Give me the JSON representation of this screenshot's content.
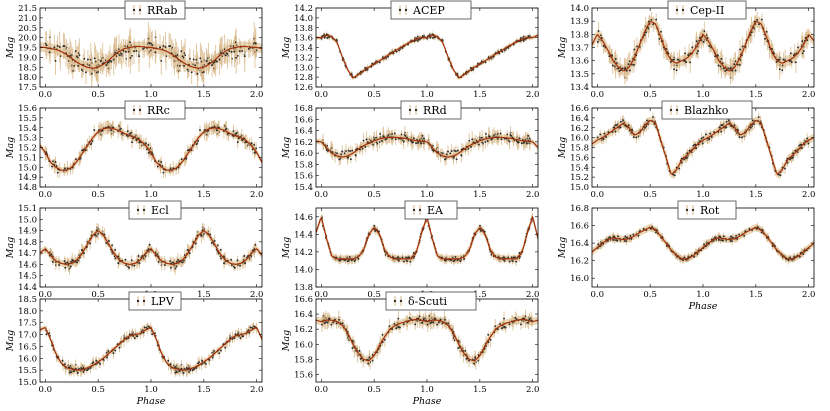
{
  "colors": {
    "band": "#e3c9a0",
    "curve": "#a0300a",
    "point": "#2b2b2b",
    "errorbar": "#d8b98a"
  },
  "chart_data": [
    {
      "type": "scatter",
      "name": "RRab",
      "legend": "RRab",
      "xlabel": "",
      "ylabel": "Mag",
      "xlim": [
        -0.05,
        2.05
      ],
      "ylim": [
        21.5,
        17.5
      ],
      "yticks": [
        17.5,
        18.0,
        18.5,
        19.0,
        19.5,
        20.0,
        20.5,
        21.0,
        21.5
      ],
      "yticklabels": [
        "17.5",
        "18.0",
        "18.5",
        "19.0",
        "19.5",
        "20.0",
        "20.5",
        "21.0",
        "21.5"
      ],
      "xticks": [
        0.0,
        0.5,
        1.0,
        1.5,
        2.0
      ],
      "xticklabels": [
        "0.0",
        "0.5",
        "1.0",
        "1.5",
        "2.0"
      ],
      "curve": {
        "x": [
          0.0,
          0.05,
          0.1,
          0.15,
          0.2,
          0.25,
          0.3,
          0.35,
          0.4,
          0.45,
          0.5,
          0.55,
          0.6,
          0.65,
          0.7,
          0.75,
          0.8,
          0.85,
          0.9,
          0.95,
          1.0
        ],
        "y": [
          19.5,
          19.45,
          19.4,
          19.3,
          19.15,
          18.95,
          18.75,
          18.6,
          18.5,
          18.45,
          18.5,
          18.65,
          18.85,
          19.1,
          19.3,
          19.45,
          19.5,
          19.55,
          19.55,
          19.52,
          19.5
        ]
      },
      "band": 0.25,
      "scatter": 1.0
    },
    {
      "type": "scatter",
      "name": "ACEP",
      "legend": "ACEP",
      "xlabel": "",
      "ylabel": "Mag",
      "xlim": [
        -0.05,
        2.05
      ],
      "ylim": [
        14.2,
        12.6
      ],
      "yticks": [
        12.6,
        12.8,
        13.0,
        13.2,
        13.4,
        13.6,
        13.8,
        14.0,
        14.2
      ],
      "yticklabels": [
        "12.6",
        "12.8",
        "13.0",
        "13.2",
        "13.4",
        "13.6",
        "13.8",
        "14.0",
        "14.2"
      ],
      "xticks": [
        0.0,
        0.5,
        1.0,
        1.5,
        2.0
      ],
      "xticklabels": [
        "0.0",
        "0.5",
        "1.0",
        "1.5",
        "2.0"
      ],
      "curve": {
        "x": [
          0.0,
          0.05,
          0.1,
          0.15,
          0.2,
          0.25,
          0.3,
          0.35,
          0.4,
          0.45,
          0.5,
          0.55,
          0.6,
          0.65,
          0.7,
          0.75,
          0.8,
          0.85,
          0.9,
          0.95,
          1.0
        ],
        "y": [
          13.6,
          13.65,
          13.62,
          13.5,
          13.2,
          12.95,
          12.78,
          12.85,
          12.93,
          13.0,
          13.07,
          13.13,
          13.2,
          13.27,
          13.33,
          13.4,
          13.46,
          13.52,
          13.57,
          13.6,
          13.6
        ]
      },
      "band": 0.04,
      "scatter": 0.08
    },
    {
      "type": "scatter",
      "name": "Cep-II",
      "legend": "Cep-II",
      "xlabel": "",
      "ylabel": "Mag",
      "xlim": [
        -0.05,
        2.05
      ],
      "ylim": [
        14.0,
        13.4
      ],
      "yticks": [
        13.4,
        13.5,
        13.6,
        13.7,
        13.8,
        13.9,
        14.0
      ],
      "yticklabels": [
        "13.4",
        "13.5",
        "13.6",
        "13.7",
        "13.8",
        "13.9",
        "14.0"
      ],
      "xticks": [
        0.0,
        0.5,
        1.0,
        1.5,
        2.0
      ],
      "xticklabels": [
        "0.0",
        "0.5",
        "1.0",
        "1.5",
        "2.0"
      ],
      "curve": {
        "x": [
          0.0,
          0.05,
          0.1,
          0.15,
          0.2,
          0.25,
          0.3,
          0.35,
          0.4,
          0.45,
          0.5,
          0.55,
          0.6,
          0.65,
          0.7,
          0.75,
          0.8,
          0.85,
          0.9,
          0.95,
          1.0
        ],
        "y": [
          13.8,
          13.75,
          13.68,
          13.6,
          13.55,
          13.52,
          13.55,
          13.62,
          13.72,
          13.82,
          13.9,
          13.88,
          13.78,
          13.67,
          13.6,
          13.58,
          13.6,
          13.62,
          13.66,
          13.72,
          13.8
        ]
      },
      "band": 0.04,
      "scatter": 0.1
    },
    {
      "type": "scatter",
      "name": "RRc",
      "legend": "RRc",
      "xlabel": "",
      "ylabel": "Mag",
      "xlim": [
        -0.05,
        2.05
      ],
      "ylim": [
        15.6,
        14.8
      ],
      "yticks": [
        14.8,
        14.9,
        15.0,
        15.1,
        15.2,
        15.3,
        15.4,
        15.5,
        15.6
      ],
      "yticklabels": [
        "14.8",
        "14.9",
        "15.0",
        "15.1",
        "15.2",
        "15.3",
        "15.4",
        "15.5",
        "15.6"
      ],
      "xticks": [
        0.0,
        0.5,
        1.0,
        1.5,
        2.0
      ],
      "xticklabels": [
        "0.0",
        "0.5",
        "1.0",
        "1.5",
        "2.0"
      ],
      "curve": {
        "x": [
          0.0,
          0.05,
          0.1,
          0.15,
          0.2,
          0.25,
          0.3,
          0.35,
          0.4,
          0.45,
          0.5,
          0.55,
          0.6,
          0.65,
          0.7,
          0.75,
          0.8,
          0.85,
          0.9,
          0.95,
          1.0
        ],
        "y": [
          15.15,
          15.05,
          15.0,
          14.97,
          14.97,
          15.0,
          15.06,
          15.14,
          15.22,
          15.3,
          15.36,
          15.39,
          15.4,
          15.39,
          15.37,
          15.34,
          15.32,
          15.3,
          15.27,
          15.22,
          15.15
        ]
      },
      "band": 0.03,
      "scatter": 0.09
    },
    {
      "type": "scatter",
      "name": "RRd",
      "legend": "RRd",
      "xlabel": "",
      "ylabel": "Mag",
      "xlim": [
        -0.05,
        2.05
      ],
      "ylim": [
        16.8,
        15.4
      ],
      "yticks": [
        15.4,
        15.6,
        15.8,
        16.0,
        16.2,
        16.4,
        16.6,
        16.8
      ],
      "yticklabels": [
        "15.4",
        "15.6",
        "15.8",
        "16.0",
        "16.2",
        "16.4",
        "16.6",
        "16.8"
      ],
      "xticks": [
        0.0,
        0.5,
        1.0,
        1.5,
        2.0
      ],
      "xticklabels": [
        "0.0",
        "0.5",
        "1.0",
        "1.5",
        "2.0"
      ],
      "curve": {
        "x": [
          0.0,
          0.05,
          0.1,
          0.15,
          0.2,
          0.25,
          0.3,
          0.35,
          0.4,
          0.45,
          0.5,
          0.55,
          0.6,
          0.65,
          0.7,
          0.75,
          0.8,
          0.85,
          0.9,
          0.95,
          1.0
        ],
        "y": [
          16.2,
          16.1,
          16.0,
          15.95,
          15.93,
          15.95,
          16.0,
          16.07,
          16.13,
          16.18,
          16.22,
          16.25,
          16.27,
          16.28,
          16.28,
          16.27,
          16.26,
          16.24,
          16.22,
          16.21,
          16.2
        ]
      },
      "band": 0.05,
      "scatter": 0.17
    },
    {
      "type": "scatter",
      "name": "Blazhko",
      "legend": "Blazhko",
      "xlabel": "",
      "ylabel": "Mag",
      "xlim": [
        -0.05,
        2.05
      ],
      "ylim": [
        16.6,
        15.0
      ],
      "yticks": [
        15.0,
        15.2,
        15.4,
        15.6,
        15.8,
        16.0,
        16.2,
        16.4,
        16.6
      ],
      "yticklabels": [
        "15.0",
        "15.2",
        "15.4",
        "15.6",
        "15.8",
        "16.0",
        "16.2",
        "16.4",
        "16.6"
      ],
      "xticks": [
        0.0,
        0.5,
        1.0,
        1.5,
        2.0
      ],
      "xticklabels": [
        "0.0",
        "0.5",
        "1.0",
        "1.5",
        "2.0"
      ],
      "curve": {
        "x": [
          0.0,
          0.05,
          0.1,
          0.15,
          0.2,
          0.25,
          0.3,
          0.35,
          0.4,
          0.45,
          0.5,
          0.55,
          0.6,
          0.65,
          0.7,
          0.75,
          0.8,
          0.85,
          0.9,
          0.95,
          1.0
        ],
        "y": [
          15.95,
          16.0,
          16.07,
          16.15,
          16.22,
          16.3,
          16.2,
          16.05,
          16.1,
          16.25,
          16.35,
          16.3,
          15.95,
          15.6,
          15.25,
          15.35,
          15.55,
          15.65,
          15.75,
          15.87,
          15.95
        ]
      },
      "band": 0.08,
      "scatter": 0.14
    },
    {
      "type": "scatter",
      "name": "Ecl",
      "legend": "Ecl",
      "xlabel": "",
      "ylabel": "Mag",
      "xlim": [
        -0.05,
        2.05
      ],
      "ylim": [
        15.1,
        14.4
      ],
      "yticks": [
        14.4,
        14.5,
        14.6,
        14.7,
        14.8,
        14.9,
        15.0,
        15.1
      ],
      "yticklabels": [
        "14.4",
        "14.5",
        "14.6",
        "14.7",
        "14.8",
        "14.9",
        "15.0",
        "15.1"
      ],
      "xticks": [
        0.0,
        0.5,
        1.0,
        1.5,
        2.0
      ],
      "xticklabels": [
        "0.0",
        "0.5",
        "1.0",
        "1.5",
        "2.0"
      ],
      "curve": {
        "x": [
          0.0,
          0.05,
          0.1,
          0.15,
          0.2,
          0.25,
          0.3,
          0.35,
          0.4,
          0.45,
          0.5,
          0.55,
          0.6,
          0.65,
          0.7,
          0.75,
          0.8,
          0.85,
          0.9,
          0.95,
          1.0
        ],
        "y": [
          14.74,
          14.68,
          14.63,
          14.61,
          14.6,
          14.61,
          14.64,
          14.7,
          14.78,
          14.86,
          14.9,
          14.86,
          14.78,
          14.7,
          14.64,
          14.61,
          14.6,
          14.61,
          14.64,
          14.7,
          14.74
        ]
      },
      "band": 0.03,
      "scatter": 0.07
    },
    {
      "type": "scatter",
      "name": "EA",
      "legend": "EA",
      "xlabel": "",
      "ylabel": "Mag",
      "xlim": [
        -0.05,
        2.05
      ],
      "ylim": [
        14.7,
        13.8
      ],
      "yticks": [
        13.8,
        14.0,
        14.2,
        14.4,
        14.6
      ],
      "yticklabels": [
        "13.8",
        "14.0",
        "14.2",
        "14.4",
        "14.6"
      ],
      "xticks": [
        0.0,
        0.5,
        1.0,
        1.5,
        2.0
      ],
      "xticklabels": [
        "0.0",
        "0.5",
        "1.0",
        "1.5",
        "2.0"
      ],
      "curve": {
        "x": [
          0.0,
          0.05,
          0.1,
          0.15,
          0.2,
          0.25,
          0.3,
          0.35,
          0.4,
          0.45,
          0.5,
          0.55,
          0.6,
          0.65,
          0.7,
          0.75,
          0.8,
          0.85,
          0.9,
          0.95,
          1.0
        ],
        "y": [
          14.6,
          14.35,
          14.15,
          14.12,
          14.12,
          14.12,
          14.12,
          14.14,
          14.22,
          14.4,
          14.48,
          14.4,
          14.22,
          14.14,
          14.12,
          14.12,
          14.12,
          14.12,
          14.2,
          14.42,
          14.6
        ]
      },
      "band": 0.04,
      "scatter": 0.06
    },
    {
      "type": "scatter",
      "name": "Rot",
      "legend": "Rot",
      "xlabel": "Phase",
      "ylabel": "Mag",
      "xlim": [
        -0.05,
        2.05
      ],
      "ylim": [
        16.8,
        15.9
      ],
      "yticks": [
        16.0,
        16.2,
        16.4,
        16.6,
        16.8
      ],
      "yticklabels": [
        "16.0",
        "16.2",
        "16.4",
        "16.6",
        "16.8"
      ],
      "xticks": [
        0.0,
        0.5,
        1.0,
        1.5,
        2.0
      ],
      "xticklabels": [
        "0.0",
        "0.5",
        "1.0",
        "1.5",
        "2.0"
      ],
      "curve": {
        "x": [
          0.0,
          0.05,
          0.1,
          0.15,
          0.2,
          0.25,
          0.3,
          0.35,
          0.4,
          0.45,
          0.5,
          0.55,
          0.6,
          0.65,
          0.7,
          0.75,
          0.8,
          0.85,
          0.9,
          0.95,
          1.0
        ],
        "y": [
          16.35,
          16.4,
          16.44,
          16.46,
          16.45,
          16.44,
          16.45,
          16.48,
          16.52,
          16.55,
          16.58,
          16.55,
          16.48,
          16.4,
          16.32,
          16.26,
          16.22,
          16.22,
          16.25,
          16.3,
          16.35
        ]
      },
      "band": 0.04,
      "scatter": 0.06
    },
    {
      "type": "scatter",
      "name": "LPV",
      "legend": "LPV",
      "xlabel": "Phase",
      "ylabel": "Mag",
      "xlim": [
        -0.05,
        2.05
      ],
      "ylim": [
        18.5,
        15.0
      ],
      "yticks": [
        15.0,
        15.5,
        16.0,
        16.5,
        17.0,
        17.5,
        18.0,
        18.5
      ],
      "yticklabels": [
        "15.0",
        "15.5",
        "16.0",
        "16.5",
        "17.0",
        "17.5",
        "18.0",
        "18.5"
      ],
      "xticks": [
        0.0,
        0.5,
        1.0,
        1.5,
        2.0
      ],
      "xticklabels": [
        "0.0",
        "0.5",
        "1.0",
        "1.5",
        "2.0"
      ],
      "curve": {
        "x": [
          0.0,
          0.05,
          0.1,
          0.15,
          0.2,
          0.25,
          0.3,
          0.35,
          0.4,
          0.45,
          0.5,
          0.55,
          0.6,
          0.65,
          0.7,
          0.75,
          0.8,
          0.85,
          0.9,
          0.95,
          1.0
        ],
        "y": [
          17.3,
          16.8,
          16.2,
          15.8,
          15.6,
          15.55,
          15.5,
          15.52,
          15.6,
          15.7,
          15.85,
          16.0,
          16.2,
          16.4,
          16.6,
          16.8,
          16.95,
          17.0,
          17.05,
          17.2,
          17.3
        ]
      },
      "band": 0.1,
      "scatter": 0.3
    },
    {
      "type": "scatter",
      "name": "δ-Scuti",
      "legend": "δ-Scuti",
      "xlabel": "Phase",
      "ylabel": "Mag",
      "xlim": [
        -0.05,
        2.05
      ],
      "ylim": [
        16.6,
        15.5
      ],
      "yticks": [
        15.6,
        15.8,
        16.0,
        16.2,
        16.4,
        16.6
      ],
      "yticklabels": [
        "15.6",
        "15.8",
        "16.0",
        "16.2",
        "16.4",
        "16.6"
      ],
      "xticks": [
        0.0,
        0.5,
        1.0,
        1.5,
        2.0
      ],
      "xticklabels": [
        "0.0",
        "0.5",
        "1.0",
        "1.5",
        "2.0"
      ],
      "curve": {
        "x": [
          0.0,
          0.05,
          0.1,
          0.15,
          0.2,
          0.25,
          0.3,
          0.35,
          0.4,
          0.45,
          0.5,
          0.55,
          0.6,
          0.65,
          0.7,
          0.75,
          0.8,
          0.85,
          0.9,
          0.95,
          1.0
        ],
        "y": [
          16.3,
          16.32,
          16.32,
          16.3,
          16.25,
          16.15,
          16.0,
          15.88,
          15.8,
          15.78,
          15.85,
          15.98,
          16.1,
          16.2,
          16.25,
          16.28,
          16.3,
          16.32,
          16.33,
          16.32,
          16.3
        ]
      },
      "band": 0.05,
      "scatter": 0.12
    }
  ]
}
